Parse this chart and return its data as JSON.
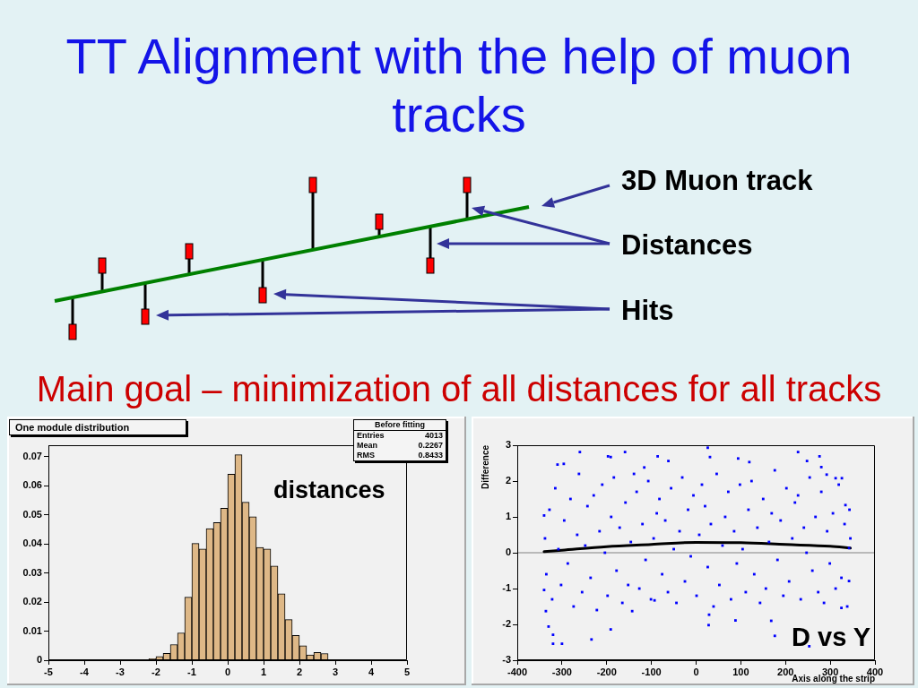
{
  "chart_data": [
    {
      "type": "other",
      "title": "TT Alignment with the help of muon tracks",
      "annotations": [
        "3D Muon track",
        "Distances",
        "Hits",
        "Main goal – minimization of all distances for all tracks"
      ]
    },
    {
      "type": "histogram",
      "title": "One module distribution",
      "bins": [
        -5,
        -4.8,
        -4.6,
        -4.4,
        -4.2,
        -4,
        -3.8,
        -3.6,
        -3.4,
        -3.2,
        -3,
        -2.8,
        -2.6,
        -2.4,
        -2.2,
        -2,
        -1.8,
        -1.6,
        -1.4,
        -1.2,
        -1,
        -0.8,
        -0.6,
        -0.4,
        -0.2,
        0,
        0.2,
        0.4,
        0.6,
        0.8,
        1,
        1.2,
        1.4,
        1.6,
        1.8,
        2,
        2.2,
        2.4,
        2.6,
        2.8,
        3,
        3.2,
        3.4,
        3.6,
        3.8,
        4,
        4.2,
        4.4,
        4.6,
        4.8,
        5
      ],
      "values": [
        0,
        0,
        0,
        0,
        0,
        0,
        0,
        0,
        0,
        0,
        0,
        0,
        0,
        0,
        0.0005,
        0.0013,
        0.0024,
        0.0054,
        0.0094,
        0.0217,
        0.0402,
        0.0383,
        0.0453,
        0.0474,
        0.0523,
        0.064,
        0.0707,
        0.0544,
        0.0494,
        0.0388,
        0.0383,
        0.0324,
        0.0229,
        0.014,
        0.0085,
        0.005,
        0.0018,
        0.0027,
        0.0023,
        0,
        0,
        0,
        0,
        0,
        0,
        0,
        0,
        0,
        0,
        0
      ],
      "color": "#deb887",
      "xlim": [
        -5,
        5
      ],
      "xticks": [
        -5,
        -4,
        -3,
        -2,
        -1,
        0,
        1,
        2,
        3,
        4,
        5
      ],
      "ylim": [
        0,
        0.074
      ],
      "yticks": [
        0,
        0.01,
        0.02,
        0.03,
        0.04,
        0.05,
        0.06,
        0.07
      ],
      "annotations": [
        "Before fitting",
        "Entries",
        "4013",
        "Mean",
        "0.2267",
        "RMS",
        "0.8433",
        "distances"
      ]
    },
    {
      "type": "scatter",
      "xlabel": "Axis along the strip",
      "ylabel": "Difference",
      "xlim": [
        -400,
        400
      ],
      "xticks": [
        -400,
        -300,
        -200,
        -100,
        0,
        100,
        200,
        300,
        400
      ],
      "ylim": [
        -3,
        3
      ],
      "yticks": [
        -3,
        -2,
        -1,
        0,
        1,
        2,
        3
      ],
      "marker": "square",
      "ref_lines": [
        {
          "axis": "y",
          "value": 0,
          "color": "#808080"
        }
      ],
      "annotations": [
        "D vs Y"
      ],
      "series": [
        {
          "type": "scatter",
          "color": "#0000ff",
          "x": [
            -338,
            -335,
            -328,
            -322,
            -315,
            -308,
            -302,
            -295,
            -287,
            -281,
            -274,
            -266,
            -262,
            -255,
            -248,
            -243,
            -236,
            -229,
            -222,
            -216,
            -210,
            -204,
            -198,
            -190,
            -184,
            -178,
            -171,
            -165,
            -158,
            -152,
            -146,
            -139,
            -133,
            -127,
            -120,
            -113,
            -107,
            -101,
            -95,
            -88,
            -82,
            -76,
            -69,
            -63,
            -56,
            -50,
            -44,
            -37,
            -31,
            -25,
            -18,
            -12,
            -6,
            1,
            7,
            13,
            20,
            26,
            33,
            39,
            46,
            52,
            59,
            65,
            72,
            78,
            85,
            91,
            98,
            104,
            111,
            117,
            124,
            130,
            137,
            143,
            150,
            156,
            163,
            169,
            176,
            182,
            189,
            195,
            202,
            208,
            215,
            221,
            228,
            234,
            241,
            247,
            254,
            260,
            267,
            273,
            280,
            286,
            293,
            299,
            306,
            312,
            319,
            325,
            332,
            338,
            343,
            345,
            -260,
            -159,
            -86,
            -310,
            -296,
            -197,
            -191,
            -62,
            -116,
            -320,
            -300,
            -234,
            -330,
            -320,
            -191,
            -143,
            -93,
            -340,
            -340,
            -336,
            26,
            31,
            94,
            119,
            228,
            248,
            276,
            280,
            292,
            312,
            326,
            28,
            29,
            88,
            176,
            253,
            168,
            325,
            342,
            342,
            334
          ],
          "values": [
            0.4,
            -0.6,
            1.2,
            -1.3,
            1.8,
            0.1,
            -0.9,
            0.9,
            -0.3,
            1.5,
            -1.5,
            0.5,
            2.2,
            -1.1,
            0.2,
            1.3,
            -0.7,
            1.6,
            -1.6,
            0.6,
            1.9,
            0.0,
            -1.2,
            1.0,
            2.1,
            -0.5,
            0.7,
            -1.4,
            1.4,
            -0.9,
            0.3,
            2.2,
            1.7,
            -1.0,
            0.8,
            -0.2,
            2.0,
            -1.3,
            0.4,
            1.1,
            1.5,
            -0.6,
            0.9,
            -1.1,
            1.8,
            0.1,
            -1.4,
            0.6,
            2.1,
            -0.8,
            1.2,
            -0.1,
            1.6,
            -1.2,
            0.5,
            1.9,
            1.3,
            -0.4,
            0.8,
            -1.5,
            2.2,
            -0.9,
            0.2,
            1.0,
            1.7,
            -1.3,
            0.6,
            -0.3,
            1.9,
            0.1,
            -1.1,
            1.2,
            2.0,
            -0.6,
            0.7,
            -1.4,
            1.5,
            -1.0,
            0.3,
            1.1,
            2.3,
            -0.2,
            0.9,
            -1.2,
            1.8,
            -0.8,
            0.4,
            1.4,
            1.6,
            -1.3,
            0.7,
            0.0,
            2.1,
            -0.5,
            1.0,
            -1.1,
            1.7,
            -1.4,
            0.6,
            -0.3,
            1.1,
            -1.0,
            1.9,
            -0.7,
            0.8,
            -1.5,
            1.2,
            0.4,
            2.81,
            2.81,
            2.69,
            2.46,
            2.48,
            2.69,
            2.67,
            2.56,
            2.38,
            -2.54,
            -2.54,
            -2.42,
            -2.06,
            -2.29,
            -2.14,
            -1.63,
            -1.33,
            1.04,
            -1.04,
            -1.63,
            2.93,
            2.67,
            2.63,
            2.53,
            2.81,
            2.56,
            2.69,
            2.39,
            2.18,
            2.08,
            2.08,
            -2.02,
            -1.73,
            -1.89,
            -2.32,
            -2.61,
            -1.9,
            -1.54,
            0.13,
            -0.79,
            1.33
          ]
        },
        {
          "type": "line",
          "color": "#000000",
          "marker": "none",
          "x": [
            -340,
            -300,
            -200,
            -100,
            0,
            100,
            200,
            300,
            345
          ],
          "values": [
            0.03,
            0.07,
            0.17,
            0.23,
            0.29,
            0.28,
            0.23,
            0.18,
            0.13
          ]
        }
      ]
    }
  ]
}
